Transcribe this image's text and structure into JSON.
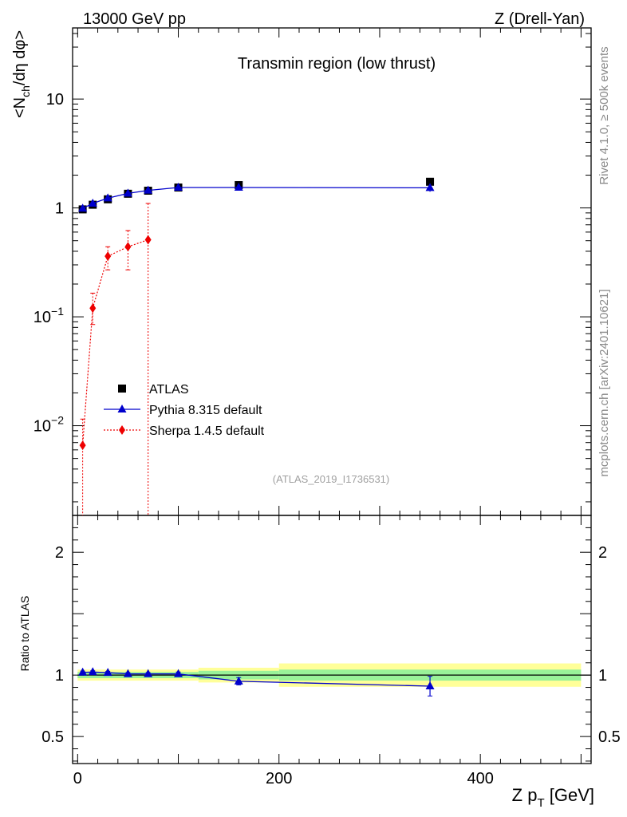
{
  "header": {
    "energy_label": "13000 GeV pp",
    "process_label": "Z (Drell-Yan)"
  },
  "side_labels": {
    "rivet": "Rivet 4.1.0, ≥ 500k events",
    "source": "mcplots.cern.ch [arXiv:2401.10621]"
  },
  "chart_data": [
    {
      "type": "scatter",
      "panel": "main",
      "title": "Transmin region (low thrust)",
      "ylabel": "<N_ch/dη dφ>",
      "ylabel_parts": {
        "lt": "<N",
        "sub": "ch",
        "rest": "/dη dφ>"
      },
      "yscale": "log",
      "xlim": [
        -5,
        510
      ],
      "ylim": [
        0.0015,
        45
      ],
      "x_ticks": [
        0,
        200,
        400
      ],
      "y_ticks": [
        {
          "value": 10,
          "label": "10"
        },
        {
          "value": 1,
          "label": "1"
        },
        {
          "value": 0.1,
          "base": "10",
          "exp": "−1"
        },
        {
          "value": 0.01,
          "base": "10",
          "exp": "−2"
        }
      ],
      "analysis_id": "(ATLAS_2019_I1736531)",
      "legend_position": "lower-left",
      "series": [
        {
          "name": "ATLAS",
          "marker": "square",
          "color": "#000000",
          "x": [
            5,
            15,
            30,
            50,
            70,
            100,
            160,
            350
          ],
          "y": [
            0.97,
            1.07,
            1.2,
            1.35,
            1.44,
            1.54,
            1.62,
            1.74
          ]
        },
        {
          "name": "Pythia 8.315 default",
          "marker": "triangle",
          "color": "#0000cc",
          "line": "solid",
          "x": [
            5,
            15,
            30,
            50,
            70,
            100,
            160,
            350
          ],
          "y": [
            0.99,
            1.1,
            1.23,
            1.36,
            1.45,
            1.54,
            1.54,
            1.53
          ],
          "yerr": [
            0,
            0,
            0,
            0,
            0,
            0,
            0.04,
            0.12
          ]
        },
        {
          "name": "Sherpa 1.4.5 default",
          "marker": "diamond",
          "color": "#ee0000",
          "line": "dotted",
          "x": [
            5,
            15,
            30,
            50,
            70
          ],
          "y": [
            0.0066,
            0.12,
            0.36,
            0.44,
            0.51
          ],
          "ylo": [
            0.0008,
            0.085,
            0.27,
            0.27,
            0.0008
          ],
          "yhi": [
            0.0115,
            0.165,
            0.44,
            0.62,
            1.1
          ]
        }
      ]
    },
    {
      "type": "scatter",
      "panel": "ratio",
      "ylabel": "Ratio to ATLAS",
      "xlabel": "Z p_T [GeV]",
      "xlabel_parts": {
        "main": "Z p",
        "sub": "T",
        "unit": " [GeV]"
      },
      "xlim": [
        -5,
        510
      ],
      "ylim": [
        0.28,
        2.3
      ],
      "x_ticks": [
        0,
        200,
        400
      ],
      "y_ticks": [
        0.5,
        1,
        2
      ],
      "reference_line": 1,
      "bands": [
        {
          "x0": 0,
          "x1": 120,
          "yellow": [
            0.955,
            1.045
          ],
          "green": [
            0.975,
            1.025
          ]
        },
        {
          "x0": 120,
          "x1": 200,
          "yellow": [
            0.94,
            1.06
          ],
          "green": [
            0.965,
            1.035
          ]
        },
        {
          "x0": 200,
          "x1": 500,
          "yellow": [
            0.905,
            1.095
          ],
          "green": [
            0.955,
            1.045
          ]
        }
      ],
      "band_colors": {
        "yellow": "#ffff99",
        "green": "#99f299"
      },
      "series": [
        {
          "name": "Pythia 8.315 default",
          "marker": "triangle",
          "color": "#0000cc",
          "x": [
            5,
            15,
            30,
            50,
            70,
            100,
            160,
            350
          ],
          "y": [
            1.022,
            1.025,
            1.02,
            1.01,
            1.01,
            1.01,
            0.95,
            0.91
          ],
          "yerr": [
            0.01,
            0.01,
            0.01,
            0.01,
            0.01,
            0.015,
            0.03,
            0.08
          ]
        }
      ]
    }
  ]
}
